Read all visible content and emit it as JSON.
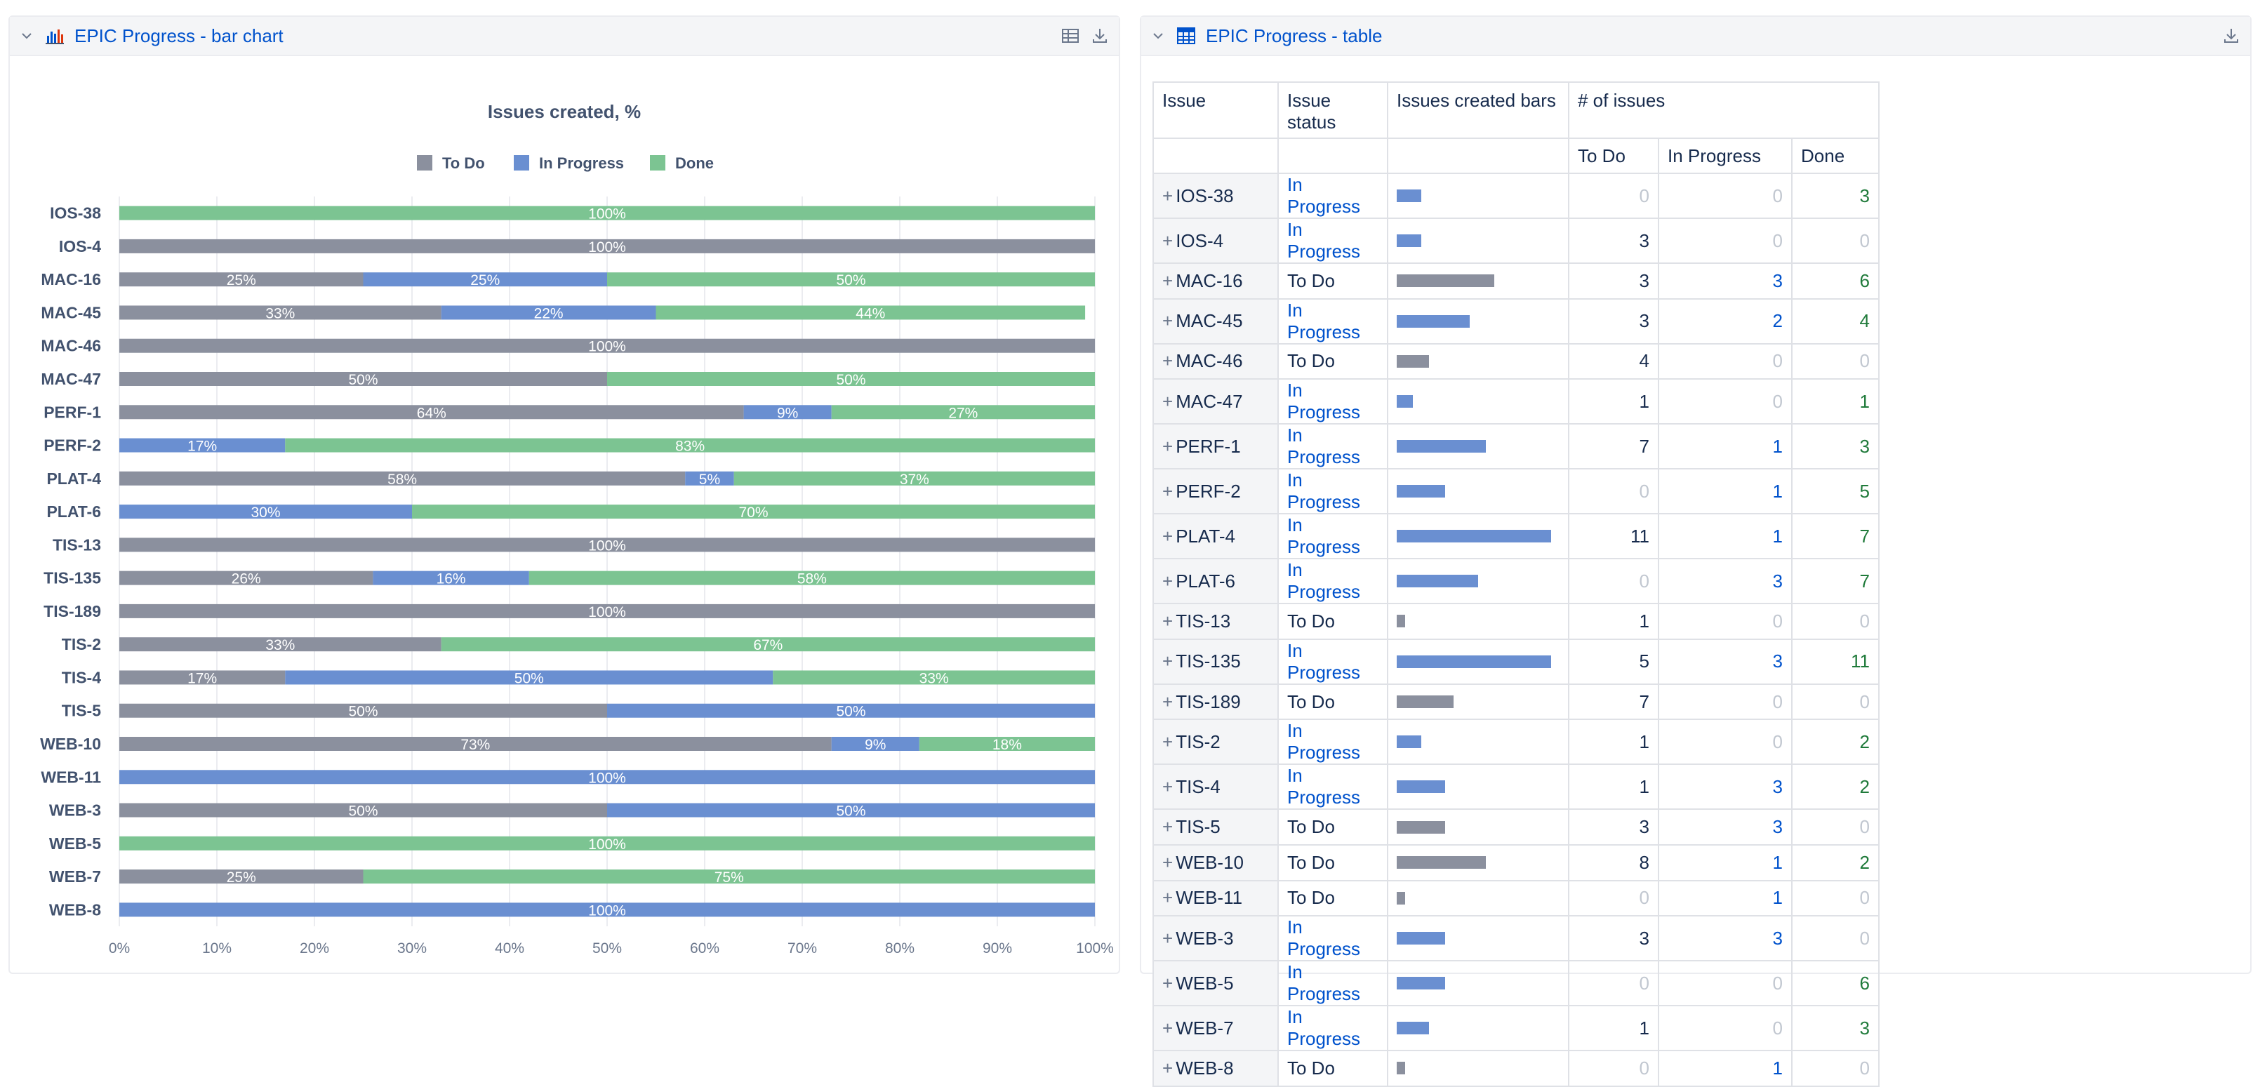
{
  "left_panel": {
    "title": "EPIC Progress - bar chart",
    "icons": [
      "chevron-down-icon",
      "bar-chart-icon",
      "table-view-icon",
      "download-icon"
    ]
  },
  "right_panel": {
    "title": "EPIC Progress - table",
    "icons": [
      "chevron-down-icon",
      "table-icon",
      "download-icon"
    ]
  },
  "colors": {
    "todo": "#8b909e",
    "in_progress": "#6a8fd1",
    "done": "#7cc492",
    "link": "#0052cc",
    "done_text": "#1f7a3a"
  },
  "chart_data": {
    "type": "bar",
    "orientation": "horizontal",
    "stacked": true,
    "title": "Issues created, %",
    "legend_position": "top-center",
    "grid": true,
    "xlim": [
      0,
      100
    ],
    "x_ticks": [
      "0%",
      "10%",
      "20%",
      "30%",
      "40%",
      "50%",
      "60%",
      "70%",
      "80%",
      "90%",
      "100%"
    ],
    "categories": [
      "IOS-38",
      "IOS-4",
      "MAC-16",
      "MAC-45",
      "MAC-46",
      "MAC-47",
      "PERF-1",
      "PERF-2",
      "PLAT-4",
      "PLAT-6",
      "TIS-13",
      "TIS-135",
      "TIS-189",
      "TIS-2",
      "TIS-4",
      "TIS-5",
      "WEB-10",
      "WEB-11",
      "WEB-3",
      "WEB-5",
      "WEB-7",
      "WEB-8"
    ],
    "series": [
      {
        "name": "To Do",
        "values": [
          0,
          100,
          25,
          33,
          100,
          50,
          64,
          0,
          58,
          0,
          100,
          26,
          100,
          33,
          17,
          50,
          73,
          0,
          50,
          0,
          25,
          0
        ]
      },
      {
        "name": "In Progress",
        "values": [
          0,
          0,
          25,
          22,
          0,
          0,
          9,
          17,
          5,
          30,
          0,
          16,
          0,
          0,
          50,
          50,
          9,
          100,
          50,
          0,
          0,
          100
        ]
      },
      {
        "name": "Done",
        "values": [
          100,
          0,
          50,
          44,
          0,
          50,
          27,
          83,
          37,
          70,
          0,
          58,
          0,
          67,
          33,
          0,
          18,
          0,
          0,
          100,
          75,
          0
        ]
      }
    ]
  },
  "table": {
    "headers": {
      "issue": "Issue",
      "status": "Issue status",
      "bars": "Issues created bars",
      "count_group": "# of issues",
      "todo": "To Do",
      "in_progress": "In Progress",
      "done": "Done"
    },
    "rows": [
      {
        "issue": "IOS-38",
        "status": "In Progress",
        "todo": 0,
        "in_progress": 0,
        "done": 3
      },
      {
        "issue": "IOS-4",
        "status": "In Progress",
        "todo": 3,
        "in_progress": 0,
        "done": 0
      },
      {
        "issue": "MAC-16",
        "status": "To Do",
        "todo": 3,
        "in_progress": 3,
        "done": 6
      },
      {
        "issue": "MAC-45",
        "status": "In Progress",
        "todo": 3,
        "in_progress": 2,
        "done": 4
      },
      {
        "issue": "MAC-46",
        "status": "To Do",
        "todo": 4,
        "in_progress": 0,
        "done": 0
      },
      {
        "issue": "MAC-47",
        "status": "In Progress",
        "todo": 1,
        "in_progress": 0,
        "done": 1
      },
      {
        "issue": "PERF-1",
        "status": "In Progress",
        "todo": 7,
        "in_progress": 1,
        "done": 3
      },
      {
        "issue": "PERF-2",
        "status": "In Progress",
        "todo": 0,
        "in_progress": 1,
        "done": 5
      },
      {
        "issue": "PLAT-4",
        "status": "In Progress",
        "todo": 11,
        "in_progress": 1,
        "done": 7
      },
      {
        "issue": "PLAT-6",
        "status": "In Progress",
        "todo": 0,
        "in_progress": 3,
        "done": 7
      },
      {
        "issue": "TIS-13",
        "status": "To Do",
        "todo": 1,
        "in_progress": 0,
        "done": 0
      },
      {
        "issue": "TIS-135",
        "status": "In Progress",
        "todo": 5,
        "in_progress": 3,
        "done": 11
      },
      {
        "issue": "TIS-189",
        "status": "To Do",
        "todo": 7,
        "in_progress": 0,
        "done": 0
      },
      {
        "issue": "TIS-2",
        "status": "In Progress",
        "todo": 1,
        "in_progress": 0,
        "done": 2
      },
      {
        "issue": "TIS-4",
        "status": "In Progress",
        "todo": 1,
        "in_progress": 3,
        "done": 2
      },
      {
        "issue": "TIS-5",
        "status": "To Do",
        "todo": 3,
        "in_progress": 3,
        "done": 0
      },
      {
        "issue": "WEB-10",
        "status": "To Do",
        "todo": 8,
        "in_progress": 1,
        "done": 2
      },
      {
        "issue": "WEB-11",
        "status": "To Do",
        "todo": 0,
        "in_progress": 1,
        "done": 0
      },
      {
        "issue": "WEB-3",
        "status": "In Progress",
        "todo": 3,
        "in_progress": 3,
        "done": 0
      },
      {
        "issue": "WEB-5",
        "status": "In Progress",
        "todo": 0,
        "in_progress": 0,
        "done": 6
      },
      {
        "issue": "WEB-7",
        "status": "In Progress",
        "todo": 1,
        "in_progress": 0,
        "done": 3
      },
      {
        "issue": "WEB-8",
        "status": "To Do",
        "todo": 0,
        "in_progress": 1,
        "done": 0
      }
    ]
  }
}
